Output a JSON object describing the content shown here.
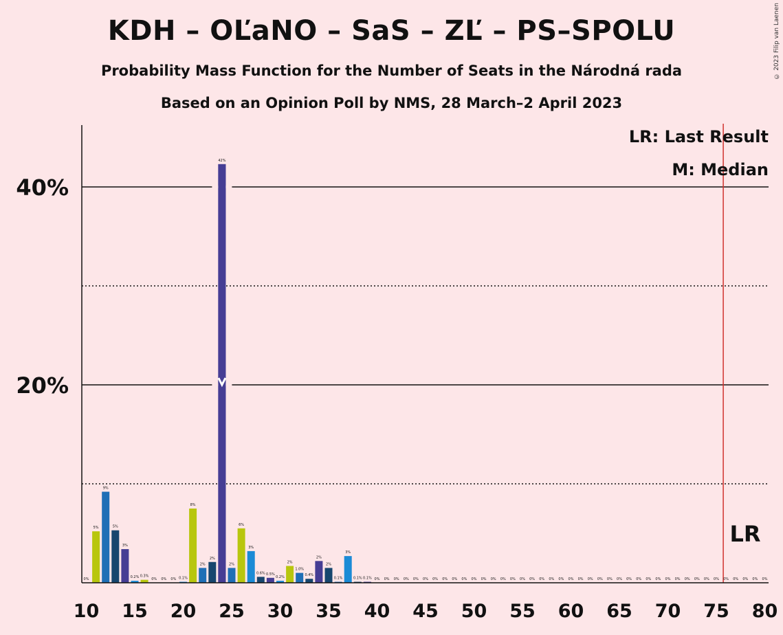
{
  "header": {
    "title": "KDH – OĽaNO – SaS – ZĽ – PS–SPOLU",
    "subtitle1": "Probability Mass Function for the Number of Seats in the Národná rada",
    "subtitle2": "Based on an Opinion Poll by NMS, 28 March–2 April 2023",
    "copyright": "© 2023 Filip van Laenen"
  },
  "legend": {
    "lr": "LR: Last Result",
    "median": "M: Median"
  },
  "colors": {
    "background": "#fde6e8",
    "kdh_yellowgreen": "#b8c60e",
    "olano_blue": "#1f6fb6",
    "sas_navy": "#17466e",
    "zl_purple": "#463d94",
    "ps_blue": "#1b8bd6",
    "lr_line": "#d0312d"
  },
  "chart_data": {
    "type": "bar",
    "xlabel": "",
    "ylabel": "",
    "ylim": [
      0,
      46
    ],
    "xlim": [
      10,
      80
    ],
    "x_ticks": [
      10,
      15,
      20,
      25,
      30,
      35,
      40,
      45,
      50,
      55,
      60,
      65,
      70,
      75,
      80
    ],
    "y_ticks_major": [
      {
        "value": 20,
        "label": "20%"
      },
      {
        "value": 40,
        "label": "40%"
      }
    ],
    "y_ticks_minor": [
      10,
      30
    ],
    "grid": true,
    "last_result": {
      "seats": 76,
      "label": "LR"
    },
    "median": {
      "seats": 24,
      "marker": "M"
    },
    "bars": [
      {
        "x": 10,
        "value": 0,
        "label": "0%",
        "color": "#1f6fb6"
      },
      {
        "x": 11,
        "value": 5.2,
        "label": "5%",
        "color": "#b8c60e"
      },
      {
        "x": 12,
        "value": 9.2,
        "label": "9%",
        "color": "#1f6fb6"
      },
      {
        "x": 13,
        "value": 5.3,
        "label": "5%",
        "color": "#17466e"
      },
      {
        "x": 14,
        "value": 3.4,
        "label": "3%",
        "color": "#463d94"
      },
      {
        "x": 15,
        "value": 0.2,
        "label": "0.2%",
        "color": "#1b8bd6"
      },
      {
        "x": 16,
        "value": 0.3,
        "label": "0.3%",
        "color": "#b8c60e"
      },
      {
        "x": 17,
        "value": 0,
        "label": "0%",
        "color": "#1f6fb6"
      },
      {
        "x": 18,
        "value": 0,
        "label": "0%",
        "color": "#17466e"
      },
      {
        "x": 19,
        "value": 0,
        "label": "0%",
        "color": "#463d94"
      },
      {
        "x": 20,
        "value": 0.1,
        "label": "0.1%",
        "color": "#1b8bd6"
      },
      {
        "x": 21,
        "value": 7.5,
        "label": "8%",
        "color": "#b8c60e"
      },
      {
        "x": 22,
        "value": 1.5,
        "label": "2%",
        "color": "#1f6fb6"
      },
      {
        "x": 23,
        "value": 2.1,
        "label": "2%",
        "color": "#17466e"
      },
      {
        "x": 24,
        "value": 42.3,
        "label": "42%",
        "color": "#463d94"
      },
      {
        "x": 25,
        "value": 1.5,
        "label": "2%",
        "color": "#1f6fb6"
      },
      {
        "x": 26,
        "value": 5.5,
        "label": "6%",
        "color": "#b8c60e"
      },
      {
        "x": 27,
        "value": 3.2,
        "label": "3%",
        "color": "#1b8bd6"
      },
      {
        "x": 28,
        "value": 0.6,
        "label": "0.6%",
        "color": "#17466e"
      },
      {
        "x": 29,
        "value": 0.5,
        "label": "0.5%",
        "color": "#463d94"
      },
      {
        "x": 30,
        "value": 0.2,
        "label": "0.2%",
        "color": "#1b8bd6"
      },
      {
        "x": 31,
        "value": 1.7,
        "label": "2%",
        "color": "#b8c60e"
      },
      {
        "x": 32,
        "value": 1.0,
        "label": "1.0%",
        "color": "#1f6fb6"
      },
      {
        "x": 33,
        "value": 0.4,
        "label": "0.4%",
        "color": "#17466e"
      },
      {
        "x": 34,
        "value": 2.2,
        "label": "2%",
        "color": "#463d94"
      },
      {
        "x": 35,
        "value": 1.5,
        "label": "2%",
        "color": "#17466e"
      },
      {
        "x": 36,
        "value": 0.1,
        "label": "0.1%",
        "color": "#1f6fb6"
      },
      {
        "x": 37,
        "value": 2.7,
        "label": "3%",
        "color": "#1b8bd6"
      },
      {
        "x": 38,
        "value": 0.1,
        "label": "0.1%",
        "color": "#17466e"
      },
      {
        "x": 39,
        "value": 0.1,
        "label": "0.1%",
        "color": "#463d94"
      },
      {
        "x": 40,
        "value": 0,
        "label": "0%"
      },
      {
        "x": 41,
        "value": 0,
        "label": "0%"
      },
      {
        "x": 42,
        "value": 0,
        "label": "0%"
      },
      {
        "x": 43,
        "value": 0,
        "label": "0%"
      },
      {
        "x": 44,
        "value": 0,
        "label": "0%"
      },
      {
        "x": 45,
        "value": 0,
        "label": "0%"
      },
      {
        "x": 46,
        "value": 0,
        "label": "0%"
      },
      {
        "x": 47,
        "value": 0,
        "label": "0%"
      },
      {
        "x": 48,
        "value": 0,
        "label": "0%"
      },
      {
        "x": 49,
        "value": 0,
        "label": "0%"
      },
      {
        "x": 50,
        "value": 0,
        "label": "0%"
      },
      {
        "x": 51,
        "value": 0,
        "label": "0%"
      },
      {
        "x": 52,
        "value": 0,
        "label": "0%"
      },
      {
        "x": 53,
        "value": 0,
        "label": "0%"
      },
      {
        "x": 54,
        "value": 0,
        "label": "0%"
      },
      {
        "x": 55,
        "value": 0,
        "label": "0%"
      },
      {
        "x": 56,
        "value": 0,
        "label": "0%"
      },
      {
        "x": 57,
        "value": 0,
        "label": "0%"
      },
      {
        "x": 58,
        "value": 0,
        "label": "0%"
      },
      {
        "x": 59,
        "value": 0,
        "label": "0%"
      },
      {
        "x": 60,
        "value": 0,
        "label": "0%"
      },
      {
        "x": 61,
        "value": 0,
        "label": "0%"
      },
      {
        "x": 62,
        "value": 0,
        "label": "0%"
      },
      {
        "x": 63,
        "value": 0,
        "label": "0%"
      },
      {
        "x": 64,
        "value": 0,
        "label": "0%"
      },
      {
        "x": 65,
        "value": 0,
        "label": "0%"
      },
      {
        "x": 66,
        "value": 0,
        "label": "0%"
      },
      {
        "x": 67,
        "value": 0,
        "label": "0%"
      },
      {
        "x": 68,
        "value": 0,
        "label": "0%"
      },
      {
        "x": 69,
        "value": 0,
        "label": "0%"
      },
      {
        "x": 70,
        "value": 0,
        "label": "0%"
      },
      {
        "x": 71,
        "value": 0,
        "label": "0%"
      },
      {
        "x": 72,
        "value": 0,
        "label": "0%"
      },
      {
        "x": 73,
        "value": 0,
        "label": "0%"
      },
      {
        "x": 74,
        "value": 0,
        "label": "0%"
      },
      {
        "x": 75,
        "value": 0,
        "label": "0%"
      },
      {
        "x": 76,
        "value": 0,
        "label": "0%"
      },
      {
        "x": 77,
        "value": 0,
        "label": "0%"
      },
      {
        "x": 78,
        "value": 0,
        "label": "0%"
      },
      {
        "x": 79,
        "value": 0,
        "label": "0%"
      },
      {
        "x": 80,
        "value": 0,
        "label": "0%"
      }
    ]
  }
}
